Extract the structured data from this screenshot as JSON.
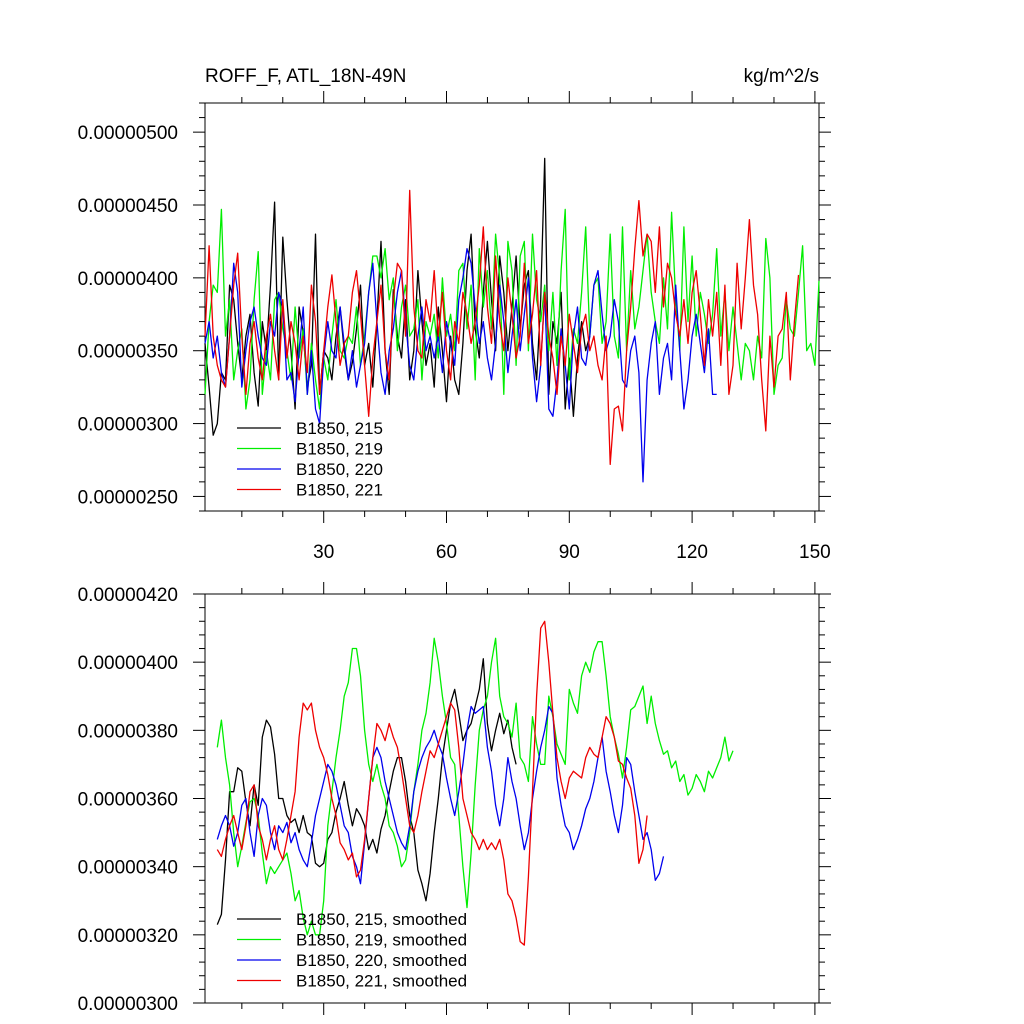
{
  "chart_data": [
    {
      "type": "line",
      "title_left": "ROFF_F, ATL_18N-49N",
      "title_right": "kg/m^2/s",
      "xlabel": "",
      "ylabel": "",
      "xlim": [
        1,
        151
      ],
      "ylim": [
        2.4e-06,
        5.2e-06
      ],
      "xticks": [
        30,
        60,
        90,
        120,
        150
      ],
      "xtick_labels": [
        "30",
        "60",
        "90",
        "120",
        "150"
      ],
      "yticks": [
        2.5e-06,
        3e-06,
        3.5e-06,
        4e-06,
        4.5e-06,
        5e-06
      ],
      "ytick_labels": [
        "0.00000250",
        "0.00000300",
        "0.00000350",
        "0.00000400",
        "0.00000450",
        "0.00000500"
      ],
      "legend_position": "bottom-left",
      "series": [
        {
          "name": "B1850, 215",
          "color": "#000000",
          "start": 1,
          "values": [
            3.55,
            3.25,
            2.92,
            3.0,
            3.35,
            3.3,
            3.95,
            3.85,
            3.55,
            3.3,
            3.6,
            3.75,
            3.35,
            3.12,
            3.7,
            3.5,
            3.95,
            4.52,
            3.3,
            4.28,
            3.85,
            3.5,
            3.1,
            3.8,
            3.62,
            3.25,
            3.4,
            4.3,
            3.2,
            3.5,
            3.45,
            3.3,
            3.6,
            3.8,
            3.5,
            3.3,
            3.42,
            3.65,
            3.95,
            3.4,
            3.55,
            3.25,
            3.7,
            4.25,
            3.5,
            3.2,
            3.92,
            3.6,
            3.45,
            3.85,
            3.3,
            3.5,
            4.05,
            3.7,
            3.4,
            3.55,
            3.25,
            3.8,
            3.5,
            3.15,
            3.6,
            3.3,
            3.2,
            3.55,
            4.05,
            4.3,
            3.65,
            3.45,
            3.9,
            4.25,
            3.85,
            3.5,
            4.15,
            3.9,
            3.5,
            3.8,
            4.15,
            3.65,
            3.95,
            4.05,
            3.55,
            3.3,
            3.85,
            4.82,
            3.2,
            3.7,
            3.55,
            3.9,
            3.1,
            3.45,
            3.05,
            3.45,
            3.7,
            3.5,
            3.6
          ]
        },
        {
          "name": "B1850, 219",
          "color": "#00ee00",
          "start": 1,
          "values": [
            3.2,
            3.7,
            3.95,
            3.9,
            4.47,
            3.6,
            3.85,
            3.3,
            3.5,
            3.65,
            3.1,
            3.3,
            3.85,
            4.18,
            3.2,
            3.5,
            3.3,
            3.85,
            3.9,
            3.65,
            3.5,
            3.3,
            3.8,
            3.45,
            3.65,
            3.2,
            3.55,
            3.3,
            3.1,
            3.45,
            3.3,
            3.6,
            3.85,
            3.5,
            3.45,
            3.6,
            3.55,
            3.8,
            3.4,
            3.6,
            3.9,
            4.15,
            4.15,
            4.0,
            4.2,
            3.85,
            4.0,
            3.5,
            3.8,
            3.95,
            3.6,
            3.65,
            3.85,
            3.3,
            3.7,
            3.6,
            3.75,
            3.45,
            4.0,
            3.6,
            3.75,
            3.5,
            4.05,
            4.1,
            3.65,
            3.95,
            3.3,
            4.2,
            3.8,
            4.05,
            3.65,
            4.3,
            4.0,
            3.2,
            4.25,
            4.05,
            3.4,
            4.15,
            4.25,
            3.5,
            4.3,
            3.85,
            3.7,
            3.95,
            3.5,
            3.9,
            3.4,
            4.05,
            4.47,
            3.3,
            3.65,
            3.55,
            3.9,
            4.35,
            3.6,
            3.95,
            4.0,
            3.55,
            3.7,
            4.3,
            3.6,
            3.45,
            4.35,
            3.5,
            4.05,
            3.65,
            3.8,
            4.05,
            4.3,
            3.9,
            3.7,
            3.55,
            4.0,
            3.65,
            4.45,
            3.85,
            3.5,
            4.35,
            3.7,
            4.15,
            3.6,
            3.9,
            3.75,
            3.55,
            3.75,
            4.2,
            3.6,
            3.9,
            3.5,
            3.8,
            3.55,
            3.3,
            3.55,
            3.5,
            3.3,
            3.6,
            3.45,
            4.27,
            4.0,
            3.2,
            3.4,
            3.45,
            3.85,
            3.65,
            3.6,
            3.9,
            4.22,
            3.5,
            3.55,
            3.4,
            3.98
          ]
        },
        {
          "name": "B1850, 220",
          "color": "#0000ee",
          "start": 1,
          "values": [
            3.55,
            3.7,
            3.45,
            3.6,
            3.35,
            3.25,
            3.6,
            4.1,
            3.9,
            3.25,
            3.5,
            3.7,
            3.8,
            3.6,
            3.45,
            3.4,
            3.7,
            3.6,
            3.9,
            3.8,
            3.3,
            3.35,
            3.15,
            3.5,
            3.8,
            3.2,
            3.5,
            3.1,
            3.0,
            3.45,
            3.7,
            3.5,
            3.45,
            3.8,
            3.55,
            3.3,
            3.5,
            3.25,
            3.4,
            3.55,
            3.9,
            4.1,
            3.7,
            3.35,
            3.2,
            3.5,
            3.65,
            3.9,
            4.05,
            3.7,
            3.4,
            3.3,
            3.6,
            3.8,
            3.5,
            3.6,
            3.45,
            3.6,
            3.35,
            3.7,
            3.55,
            3.4,
            3.85,
            4.0,
            4.2,
            4.1,
            3.8,
            3.55,
            3.7,
            3.45,
            3.3,
            3.55,
            3.95,
            3.7,
            3.35,
            3.6,
            3.85,
            3.5,
            3.75,
            4.0,
            3.45,
            3.15,
            3.4,
            3.9,
            3.1,
            3.05,
            3.3,
            3.65,
            3.4,
            3.1,
            3.6,
            3.8,
            3.45,
            3.4,
            3.6,
            3.95,
            4.05,
            3.75,
            3.5,
            3.6,
            3.85,
            3.7,
            3.3,
            3.25,
            3.5,
            3.6,
            3.35,
            2.6,
            3.3,
            3.55,
            3.7,
            3.2,
            3.45,
            3.55,
            3.3,
            3.95,
            3.5,
            3.1,
            3.3,
            3.6,
            3.75,
            3.55,
            3.35,
            3.65,
            3.2,
            3.2
          ]
        },
        {
          "name": "B1850, 221",
          "color": "#ee0000",
          "start": 1,
          "values": [
            3.6,
            4.22,
            3.6,
            3.4,
            3.3,
            3.25,
            3.6,
            3.95,
            4.17,
            3.6,
            3.2,
            3.55,
            3.7,
            3.45,
            3.3,
            3.6,
            3.75,
            3.5,
            3.3,
            3.85,
            3.45,
            3.7,
            3.55,
            3.3,
            3.6,
            3.35,
            3.95,
            3.7,
            3.2,
            3.5,
            3.8,
            4.02,
            3.7,
            3.4,
            3.55,
            3.6,
            3.9,
            4.05,
            3.75,
            3.4,
            3.05,
            3.45,
            3.7,
            3.95,
            3.5,
            3.3,
            3.85,
            4.1,
            4.05,
            3.6,
            4.6,
            3.8,
            3.5,
            3.45,
            3.85,
            3.7,
            4.05,
            3.6,
            3.9,
            3.5,
            3.3,
            3.7,
            3.55,
            3.9,
            3.75,
            3.55,
            3.7,
            3.95,
            4.35,
            3.8,
            3.55,
            4.15,
            3.7,
            3.5,
            4.0,
            3.75,
            3.45,
            3.6,
            4.1,
            3.55,
            3.75,
            4.05,
            3.4,
            3.9,
            3.6,
            3.45,
            3.2,
            3.6,
            3.4,
            3.75,
            3.55,
            3.35,
            3.65,
            3.75,
            3.5,
            3.6,
            3.4,
            3.3,
            3.6,
            2.72,
            3.1,
            3.12,
            2.95,
            3.5,
            3.8,
            4.2,
            4.53,
            4.15,
            4.3,
            4.25,
            3.9,
            4.35,
            3.8,
            4.1,
            4.0,
            3.75,
            3.6,
            3.85,
            3.55,
            3.9,
            4.05,
            3.75,
            3.4,
            3.85,
            3.6,
            3.9,
            3.4,
            3.95,
            3.2,
            3.4,
            4.1,
            3.65,
            4.0,
            4.4,
            3.95,
            3.75,
            3.3,
            2.95,
            3.6,
            3.25,
            3.6,
            3.65,
            3.9,
            3.3,
            3.7,
            4.02
          ]
        }
      ]
    },
    {
      "type": "line",
      "title_left": "",
      "title_right": "",
      "xlabel": "",
      "ylabel": "",
      "xlim": [
        1,
        151
      ],
      "ylim": [
        3e-06,
        4.2e-06
      ],
      "xticks": [
        30,
        60,
        90,
        120,
        150
      ],
      "xtick_labels": [],
      "yticks": [
        3e-06,
        3.2e-06,
        3.4e-06,
        3.6e-06,
        3.8e-06,
        4e-06,
        4.2e-06
      ],
      "ytick_labels": [
        "0.00000300",
        "0.00000320",
        "0.00000340",
        "0.00000360",
        "0.00000380",
        "0.00000400",
        "0.00000420"
      ],
      "legend_position": "bottom-left",
      "series": [
        {
          "name": "B1850, 215, smoothed",
          "color": "#000000",
          "start": 4,
          "values": [
            3.23,
            3.26,
            3.42,
            3.62,
            3.62,
            3.69,
            3.68,
            3.59,
            3.52,
            3.64,
            3.58,
            3.78,
            3.83,
            3.81,
            3.73,
            3.6,
            3.6,
            3.55,
            3.53,
            3.54,
            3.5,
            3.55,
            3.5,
            3.49,
            3.41,
            3.4,
            3.41,
            3.48,
            3.5,
            3.56,
            3.6,
            3.65,
            3.58,
            3.52,
            3.57,
            3.55,
            3.52,
            3.45,
            3.48,
            3.44,
            3.51,
            3.55,
            3.62,
            3.68,
            3.72,
            3.72,
            3.65,
            3.55,
            3.5,
            3.39,
            3.35,
            3.3,
            3.38,
            3.5,
            3.6,
            3.72,
            3.8,
            3.88,
            3.92,
            3.85,
            3.77,
            3.8,
            3.82,
            3.87,
            3.92,
            4.01,
            3.82,
            3.74,
            3.8,
            3.85,
            3.79,
            3.83,
            3.75,
            3.7
          ]
        },
        {
          "name": "B1850, 219, smoothed",
          "color": "#00ee00",
          "start": 4,
          "values": [
            3.75,
            3.83,
            3.72,
            3.64,
            3.5,
            3.4,
            3.46,
            3.53,
            3.59,
            3.6,
            3.55,
            3.44,
            3.35,
            3.4,
            3.38,
            3.4,
            3.42,
            3.44,
            3.38,
            3.3,
            3.33,
            3.25,
            3.2,
            3.24,
            3.2,
            3.2,
            3.3,
            3.52,
            3.62,
            3.72,
            3.8,
            3.9,
            3.94,
            4.04,
            4.04,
            3.96,
            3.8,
            3.7,
            3.65,
            3.7,
            3.64,
            3.6,
            3.52,
            3.5,
            3.46,
            3.4,
            3.42,
            3.5,
            3.62,
            3.7,
            3.8,
            3.85,
            3.94,
            4.07,
            4.0,
            3.9,
            3.82,
            3.72,
            3.7,
            3.55,
            3.4,
            3.28,
            3.44,
            3.64,
            3.8,
            3.86,
            3.9,
            4.0,
            4.07,
            3.9,
            3.84,
            3.82,
            3.78,
            3.88,
            3.72,
            3.7,
            3.65,
            3.84,
            3.76,
            3.7,
            3.7,
            3.9,
            3.84,
            3.76,
            3.73,
            3.7,
            3.92,
            3.88,
            3.85,
            3.96,
            4.0,
            3.97,
            4.03,
            4.06,
            4.06,
            3.96,
            3.84,
            3.78,
            3.73,
            3.66,
            3.75,
            3.86,
            3.87,
            3.9,
            3.93,
            3.82,
            3.9,
            3.82,
            3.77,
            3.73,
            3.74,
            3.69,
            3.71,
            3.65,
            3.67,
            3.61,
            3.63,
            3.67,
            3.65,
            3.62,
            3.68,
            3.66,
            3.69,
            3.72,
            3.78,
            3.71,
            3.74
          ]
        },
        {
          "name": "B1850, 220, smoothed",
          "color": "#0000ee",
          "start": 4,
          "values": [
            3.48,
            3.52,
            3.55,
            3.52,
            3.46,
            3.5,
            3.58,
            3.6,
            3.5,
            3.43,
            3.55,
            3.6,
            3.58,
            3.5,
            3.45,
            3.52,
            3.5,
            3.53,
            3.47,
            3.5,
            3.45,
            3.42,
            3.4,
            3.47,
            3.55,
            3.6,
            3.65,
            3.7,
            3.68,
            3.64,
            3.58,
            3.52,
            3.5,
            3.43,
            3.4,
            3.35,
            3.47,
            3.6,
            3.72,
            3.75,
            3.72,
            3.65,
            3.6,
            3.55,
            3.5,
            3.47,
            3.45,
            3.52,
            3.62,
            3.68,
            3.72,
            3.75,
            3.77,
            3.8,
            3.76,
            3.73,
            3.66,
            3.6,
            3.55,
            3.62,
            3.7,
            3.8,
            3.87,
            3.85,
            3.86,
            3.87,
            3.75,
            3.68,
            3.58,
            3.52,
            3.6,
            3.72,
            3.65,
            3.6,
            3.52,
            3.45,
            3.5,
            3.6,
            3.68,
            3.75,
            3.8,
            3.87,
            3.85,
            3.66,
            3.58,
            3.52,
            3.5,
            3.45,
            3.48,
            3.52,
            3.57,
            3.6,
            3.65,
            3.72,
            3.78,
            3.68,
            3.62,
            3.55,
            3.5,
            3.58,
            3.72,
            3.7,
            3.62,
            3.55,
            3.48,
            3.5,
            3.45,
            3.36,
            3.38,
            3.43
          ]
        },
        {
          "name": "B1850, 221, smoothed",
          "color": "#ee0000",
          "start": 4,
          "values": [
            3.45,
            3.43,
            3.48,
            3.52,
            3.55,
            3.5,
            3.45,
            3.52,
            3.62,
            3.64,
            3.52,
            3.48,
            3.42,
            3.48,
            3.52,
            3.45,
            3.42,
            3.48,
            3.55,
            3.62,
            3.78,
            3.88,
            3.86,
            3.88,
            3.8,
            3.75,
            3.72,
            3.67,
            3.6,
            3.55,
            3.47,
            3.45,
            3.42,
            3.44,
            3.37,
            3.39,
            3.48,
            3.6,
            3.72,
            3.82,
            3.8,
            3.77,
            3.82,
            3.78,
            3.75,
            3.68,
            3.6,
            3.52,
            3.5,
            3.55,
            3.62,
            3.68,
            3.74,
            3.72,
            3.76,
            3.8,
            3.84,
            3.88,
            3.86,
            3.75,
            3.6,
            3.55,
            3.5,
            3.48,
            3.45,
            3.48,
            3.45,
            3.47,
            3.45,
            3.48,
            3.42,
            3.32,
            3.3,
            3.25,
            3.18,
            3.17,
            3.37,
            3.62,
            3.9,
            4.1,
            4.12,
            4.0,
            3.85,
            3.72,
            3.65,
            3.6,
            3.66,
            3.68,
            3.67,
            3.66,
            3.72,
            3.75,
            3.73,
            3.72,
            3.78,
            3.84,
            3.82,
            3.78,
            3.71,
            3.7,
            3.66,
            3.63,
            3.55,
            3.41,
            3.45,
            3.55
          ]
        }
      ]
    }
  ]
}
